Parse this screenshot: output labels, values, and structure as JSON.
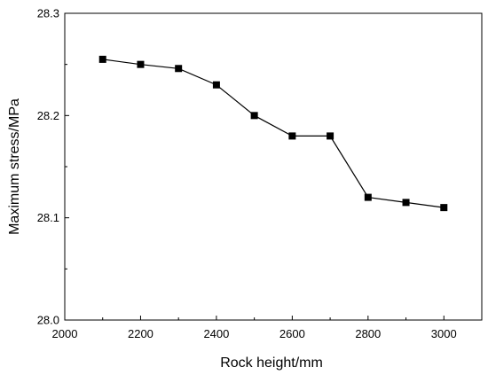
{
  "chart_data": {
    "type": "line",
    "xlabel": "Rock height/mm",
    "ylabel": "Maximum stress/MPa",
    "xlim": [
      2000,
      3100
    ],
    "ylim": [
      28.0,
      28.3
    ],
    "x_ticks": [
      2000,
      2200,
      2400,
      2600,
      2800,
      3000
    ],
    "x_tick_labels": [
      "2000",
      "2200",
      "2400",
      "2600",
      "2800",
      "3000"
    ],
    "y_ticks": [
      28.0,
      28.1,
      28.2,
      28.3
    ],
    "y_tick_labels": [
      "28.0",
      "28.1",
      "28.2",
      "28.3"
    ],
    "grid": false,
    "marker": "square",
    "line_color": "#000000",
    "series": [
      {
        "x": [
          2100,
          2200,
          2300,
          2400,
          2500,
          2600,
          2700,
          2800,
          2900,
          3000
        ],
        "y": [
          28.255,
          28.25,
          28.246,
          28.23,
          28.2,
          28.18,
          28.18,
          28.12,
          28.115,
          28.11
        ]
      }
    ]
  }
}
